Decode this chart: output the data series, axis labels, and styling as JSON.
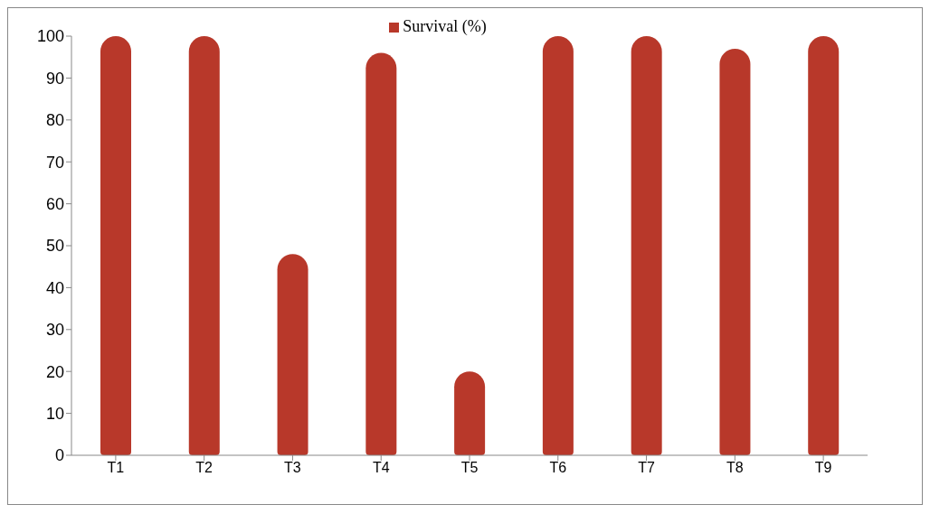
{
  "chart_data": {
    "type": "bar",
    "categories": [
      "T1",
      "T2",
      "T3",
      "T4",
      "T5",
      "T6",
      "T7",
      "T8",
      "T9"
    ],
    "series": [
      {
        "name": "Survival (%)",
        "color": "#b8382a",
        "values": [
          100,
          100,
          48,
          96,
          20,
          100,
          100,
          97,
          100
        ]
      }
    ],
    "ylim": [
      0,
      100
    ],
    "yticks": [
      0,
      10,
      20,
      30,
      40,
      50,
      60,
      70,
      80,
      90,
      100
    ],
    "grid": false,
    "legend": "top"
  }
}
